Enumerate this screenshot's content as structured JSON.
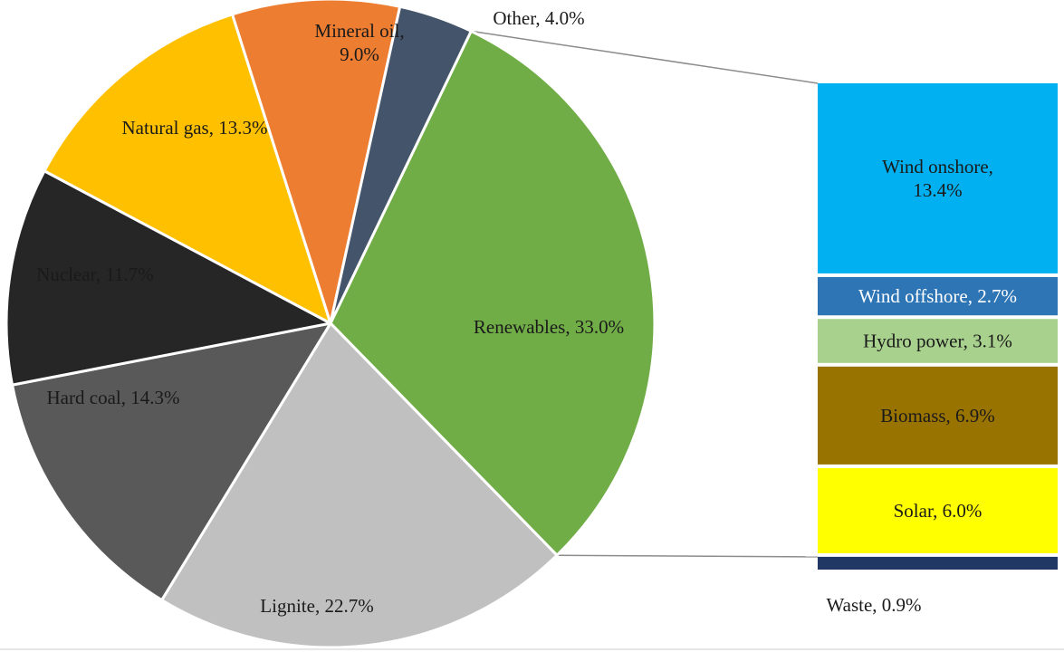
{
  "chart_data": {
    "type": "pie",
    "subtype": "pie-of-bar",
    "title": "",
    "unit": "%",
    "slices": [
      {
        "label": "Renewables",
        "value": 33.0,
        "color": "#70ad47",
        "label_text": "Renewables, 33.0%"
      },
      {
        "label": "Lignite",
        "value": 22.7,
        "color": "#c0c0c0",
        "label_text": "Lignite, 22.7%"
      },
      {
        "label": "Hard coal",
        "value": 14.3,
        "color": "#595959",
        "label_text": "Hard coal, 14.3%"
      },
      {
        "label": "Nuclear",
        "value": 11.7,
        "color": "#262626",
        "label_text": "Nuclear, 11.7%"
      },
      {
        "label": "Natural gas",
        "value": 13.3,
        "color": "#ffc000",
        "label_text": "Natural gas, 13.3%"
      },
      {
        "label": "Mineral oil",
        "value": 9.0,
        "color": "#ed7d31",
        "label_text_lines": [
          "Mineral oil,",
          "9.0%"
        ]
      },
      {
        "label": "Other",
        "value": 4.0,
        "color": "#44546a",
        "label_text": "Other, 4.0%"
      }
    ],
    "breakdown": {
      "of": "Renewables",
      "segments": [
        {
          "label": "Wind onshore",
          "value": 13.4,
          "color": "#00b0f0",
          "label_text_lines": [
            "Wind onshore,",
            "13.4%"
          ]
        },
        {
          "label": "Wind offshore",
          "value": 2.7,
          "color": "#2e75b6",
          "label_text": "Wind offshore, 2.7%"
        },
        {
          "label": "Hydro power",
          "value": 3.1,
          "color": "#a9d18e",
          "label_text": "Hydro power, 3.1%"
        },
        {
          "label": "Biomass",
          "value": 6.9,
          "color": "#997300",
          "label_text": "Biomass, 6.9%"
        },
        {
          "label": "Solar",
          "value": 6.0,
          "color": "#ffff00",
          "label_text": "Solar, 6.0%"
        },
        {
          "label": "Waste",
          "value": 0.9,
          "color": "#1f3864",
          "label_text": "Waste, 0.9%"
        }
      ]
    },
    "legend": "none",
    "grid": false
  }
}
